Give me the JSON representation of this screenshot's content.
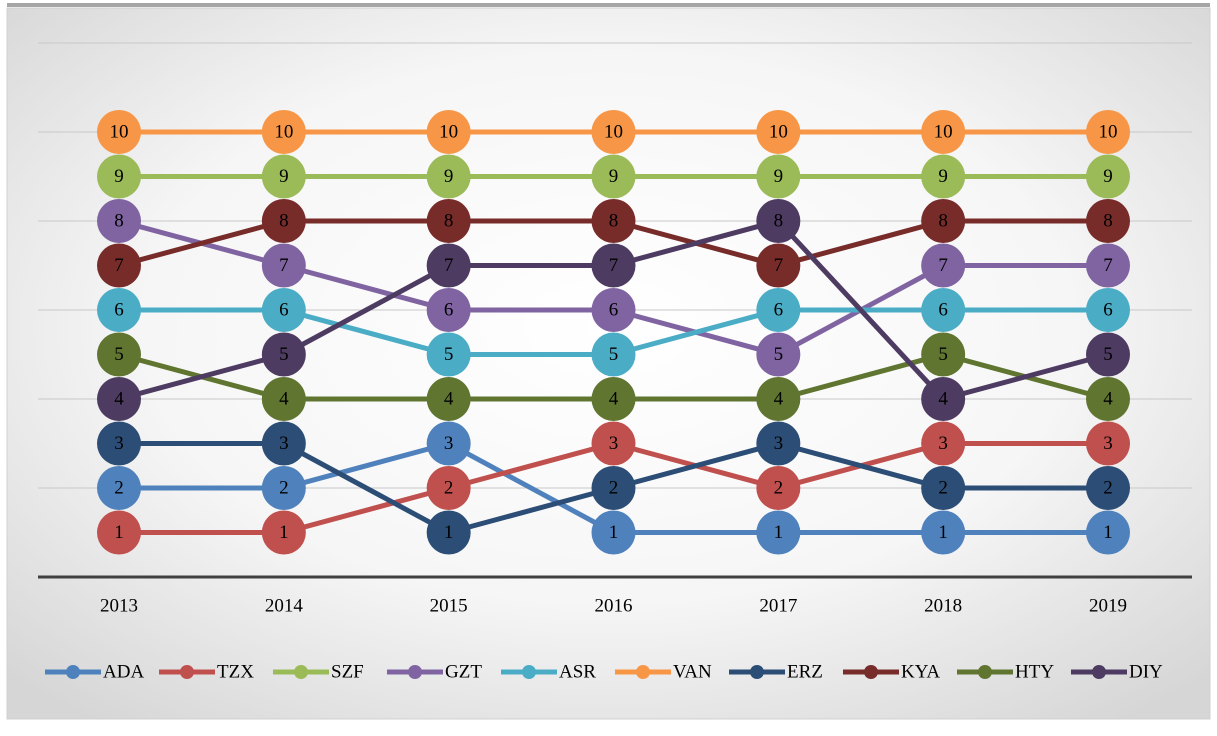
{
  "chart_data": {
    "type": "line",
    "categories": [
      "2013",
      "2014",
      "2015",
      "2016",
      "2017",
      "2018",
      "2019"
    ],
    "series": [
      {
        "name": "ADA",
        "color": "#4f81bd",
        "values": [
          2,
          2,
          3,
          1,
          1,
          1,
          1
        ]
      },
      {
        "name": "TZX",
        "color": "#c0504d",
        "values": [
          1,
          1,
          2,
          3,
          2,
          3,
          3
        ]
      },
      {
        "name": "SZF",
        "color": "#9bbb59",
        "values": [
          9,
          9,
          9,
          9,
          9,
          9,
          9
        ]
      },
      {
        "name": "GZT",
        "color": "#8064a2",
        "values": [
          8,
          7,
          6,
          6,
          5,
          7,
          7
        ]
      },
      {
        "name": "ASR",
        "color": "#4bacc6",
        "values": [
          6,
          6,
          5,
          5,
          6,
          6,
          6
        ]
      },
      {
        "name": "VAN",
        "color": "#f79646",
        "values": [
          10,
          10,
          10,
          10,
          10,
          10,
          10
        ]
      },
      {
        "name": "ERZ",
        "color": "#2c4d75",
        "values": [
          3,
          3,
          1,
          2,
          3,
          2,
          2
        ]
      },
      {
        "name": "KYA",
        "color": "#772c2a",
        "values": [
          7,
          8,
          8,
          8,
          7,
          8,
          8
        ]
      },
      {
        "name": "HTY",
        "color": "#5f7530",
        "values": [
          5,
          4,
          4,
          4,
          4,
          5,
          4
        ]
      },
      {
        "name": "DIY",
        "color": "#4d3b62",
        "values": [
          4,
          5,
          7,
          7,
          8,
          4,
          5
        ]
      }
    ],
    "ylim": [
      0,
      12
    ],
    "yticks": [
      2,
      4,
      6,
      8,
      10,
      12
    ],
    "grid": true,
    "legend": "bottom"
  }
}
